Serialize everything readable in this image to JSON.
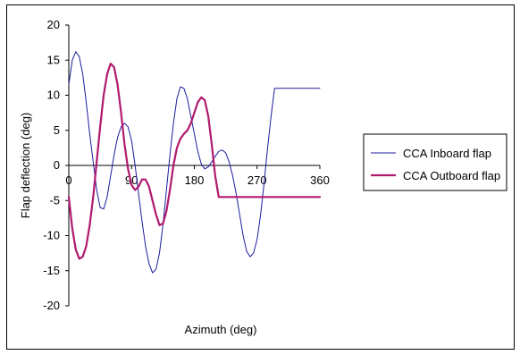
{
  "chart_data": {
    "type": "line",
    "title": "",
    "xlabel": "Azimuth (deg)",
    "ylabel": "Flap deflection (deg)",
    "xlim": [
      0,
      360
    ],
    "ylim": [
      -20,
      20
    ],
    "x_ticks": [
      "0",
      "90",
      "180",
      "270",
      "360"
    ],
    "y_ticks": [
      "20",
      "15",
      "10",
      "5",
      "0",
      "-5",
      "-10",
      "-15",
      "-20"
    ],
    "grid": false,
    "legend_position": "right",
    "series": [
      {
        "name": "CCA Inboard flap",
        "color": "#1c1c9c",
        "x": [
          0,
          5,
          10,
          15,
          20,
          25,
          30,
          35,
          40,
          45,
          50,
          55,
          60,
          65,
          70,
          75,
          80,
          85,
          90,
          95,
          100,
          105,
          110,
          115,
          120,
          125,
          130,
          135,
          140,
          145,
          150,
          155,
          160,
          165,
          170,
          175,
          180,
          185,
          190,
          195,
          200,
          205,
          210,
          215,
          220,
          225,
          230,
          235,
          240,
          245,
          250,
          255,
          260,
          265,
          270,
          275,
          280,
          285,
          290,
          295,
          300,
          305,
          310,
          315,
          320,
          325,
          330,
          335,
          340,
          345,
          350,
          355,
          360
        ],
        "y": [
          11.5,
          15.0,
          16.2,
          15.5,
          13.0,
          9.0,
          4.5,
          0.5,
          -3.5,
          -6.0,
          -6.2,
          -4.5,
          -1.5,
          1.5,
          4.0,
          5.5,
          6.0,
          5.5,
          3.5,
          0.0,
          -4.0,
          -8.0,
          -11.5,
          -14.0,
          -15.3,
          -14.8,
          -12.5,
          -8.5,
          -3.5,
          1.5,
          6.0,
          9.5,
          11.2,
          11.0,
          9.5,
          7.0,
          4.5,
          2.0,
          0.2,
          -0.5,
          -0.2,
          0.5,
          1.3,
          2.0,
          2.2,
          1.8,
          0.5,
          -1.5,
          -4.0,
          -7.0,
          -10.0,
          -12.2,
          -13.0,
          -12.5,
          -10.5,
          -7.0,
          -2.5,
          2.5,
          7.0,
          11.0,
          11.0,
          11.0,
          11.0,
          11.0,
          11.0,
          11.0,
          11.0,
          11.0,
          11.0,
          11.0,
          11.0,
          11.0,
          11.0
        ]
      },
      {
        "name": "CCA Outboard flap",
        "color": "#b0196e",
        "x": [
          0,
          5,
          10,
          15,
          20,
          25,
          30,
          35,
          40,
          45,
          50,
          55,
          60,
          65,
          70,
          75,
          80,
          85,
          90,
          95,
          100,
          105,
          110,
          115,
          120,
          125,
          130,
          135,
          140,
          145,
          150,
          155,
          160,
          165,
          170,
          175,
          180,
          185,
          190,
          195,
          200,
          205,
          210,
          215,
          220,
          225,
          230,
          235,
          240,
          245,
          250,
          255,
          260,
          265,
          270,
          275,
          280,
          285,
          290,
          295,
          300,
          305,
          310,
          315,
          320,
          325,
          330,
          335,
          340,
          345,
          350,
          355,
          360
        ],
        "y": [
          -4.5,
          -9.0,
          -12.0,
          -13.3,
          -13.0,
          -11.5,
          -8.5,
          -4.5,
          0.5,
          5.5,
          10.0,
          13.0,
          14.5,
          14.0,
          11.5,
          7.5,
          3.0,
          -0.5,
          -2.8,
          -3.5,
          -3.0,
          -2.0,
          -2.0,
          -3.0,
          -5.0,
          -7.0,
          -8.5,
          -8.3,
          -6.5,
          -3.5,
          0.0,
          2.5,
          3.8,
          4.5,
          5.0,
          6.0,
          7.5,
          9.0,
          9.7,
          9.3,
          7.0,
          3.0,
          -1.5,
          -4.5,
          -4.5,
          -4.5,
          -4.5,
          -4.5,
          -4.5,
          -4.5,
          -4.5,
          -4.5,
          -4.5,
          -4.5,
          -4.5,
          -4.5,
          -4.5,
          -4.5,
          -4.5,
          -4.5,
          -4.5,
          -4.5,
          -4.5,
          -4.5,
          -4.5,
          -4.5,
          -4.5,
          -4.5,
          -4.5,
          -4.5,
          -4.5,
          -4.5,
          -4.5
        ]
      }
    ]
  }
}
